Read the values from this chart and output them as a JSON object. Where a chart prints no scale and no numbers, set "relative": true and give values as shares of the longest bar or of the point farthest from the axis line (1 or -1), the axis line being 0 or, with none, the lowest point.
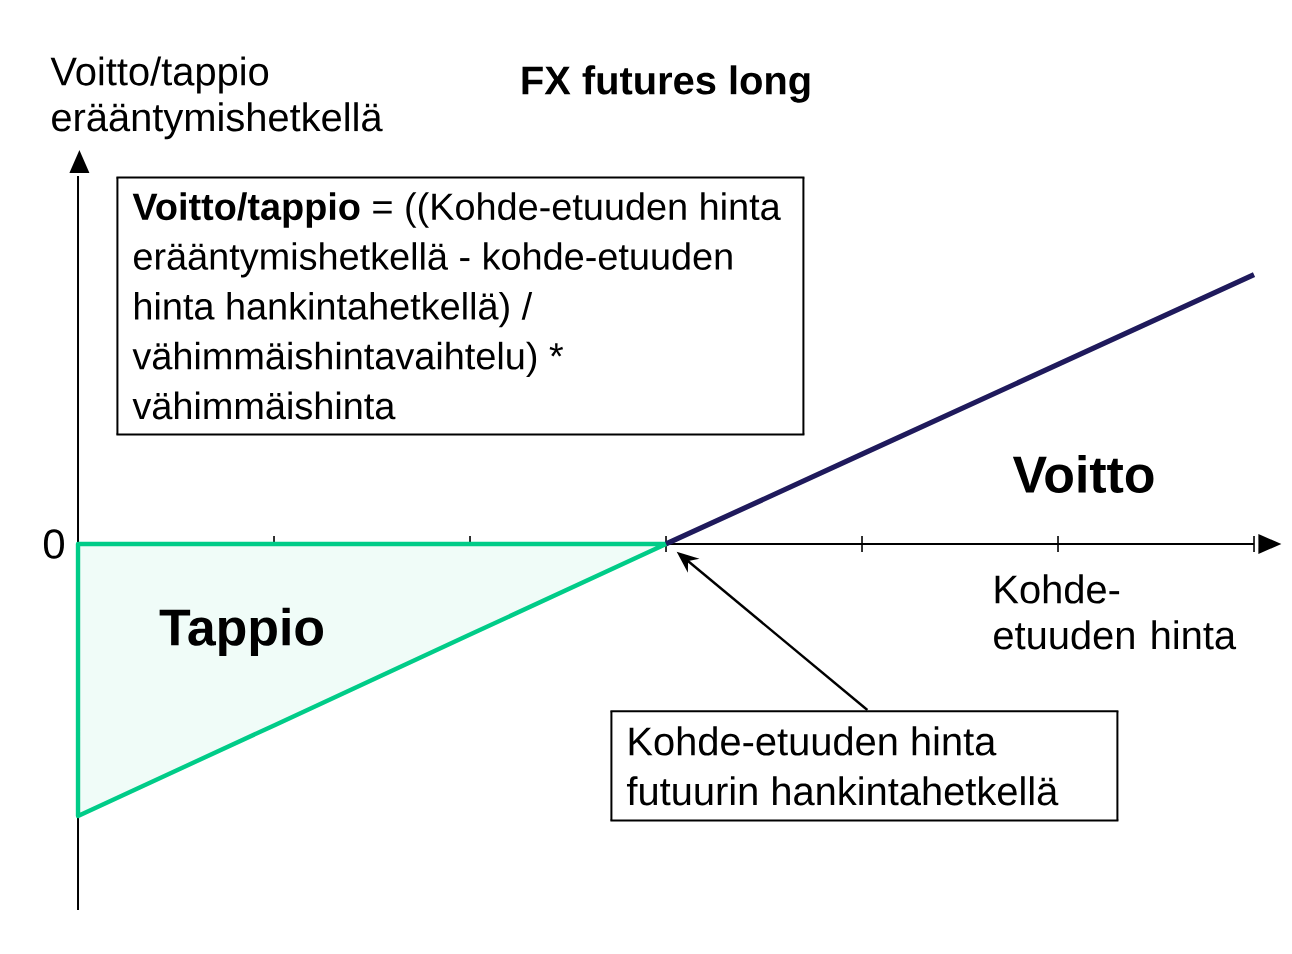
{
  "chart_data": {
    "type": "line",
    "title": "FX futures long",
    "xlabel": "Kohde-etuuden hinta",
    "relative": true,
    "categories": [
      null,
      null,
      null,
      null,
      null,
      null,
      null
    ],
    "series": [
      {
        "type": "area",
        "color": "#00cc88",
        "values": [
          -1,
          -0.667,
          -0.333,
          0,
          null,
          null,
          null
        ]
      },
      {
        "color": "#1f1a5c",
        "values": [
          null,
          null,
          null,
          0,
          0.33,
          0.66,
          0.99
        ]
      }
    ],
    "annotations": [
      "Voitto/tappio erääntymishetkellä",
      "0",
      "**Voitto/tappio** = ((Kohde-etuuden hinta erääntymishetkellä - kohde-etuuden hinta hankintahetkellä) / vähimmäishintavaihtelu) * vähimmäishinta",
      "Voitto",
      "Tappio",
      "Kohde-etuuden hinta futuurin hankintahetkellä"
    ]
  }
}
